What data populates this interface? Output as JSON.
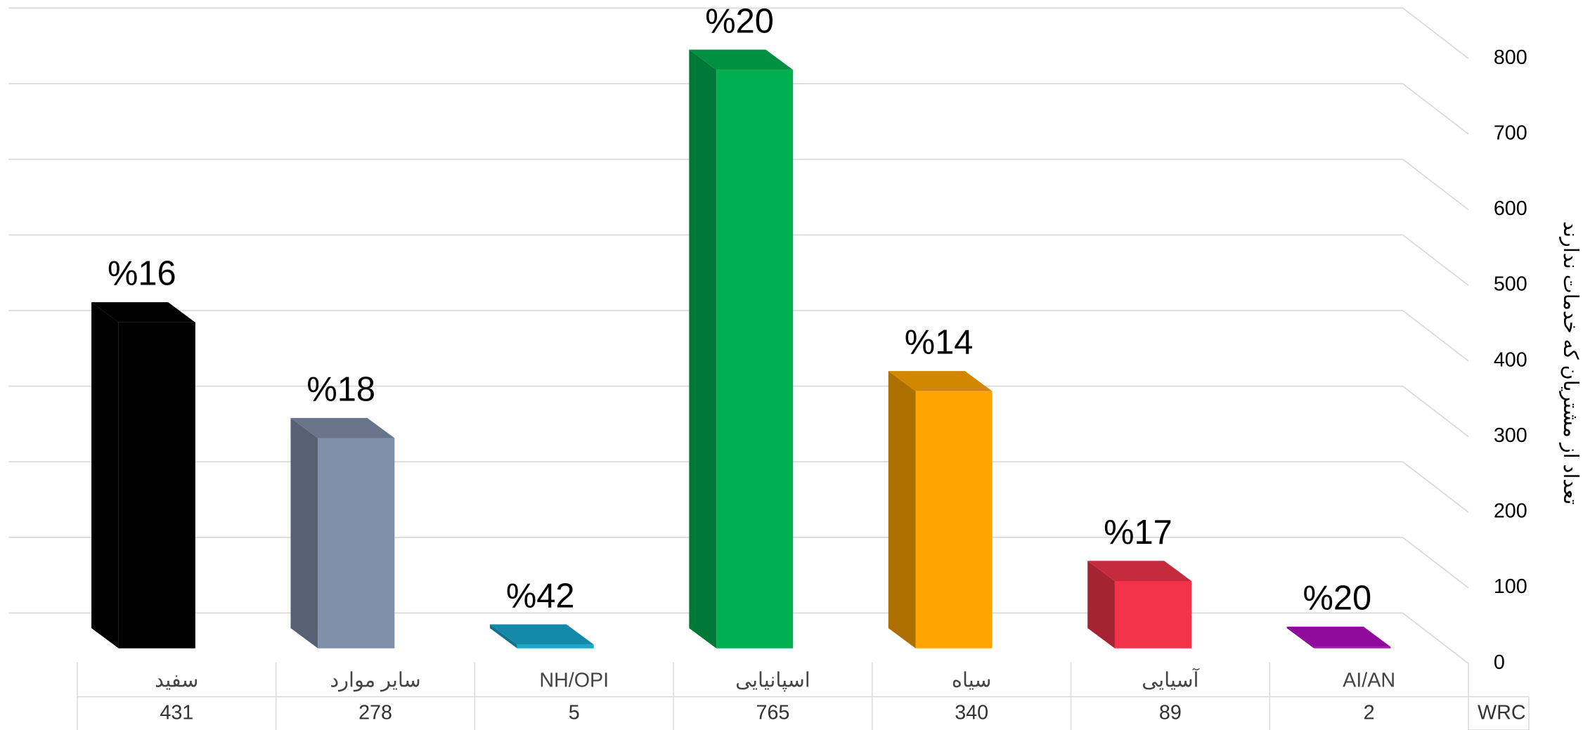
{
  "chart_data": {
    "type": "bar3d",
    "y_axis_label": "تعداد از مشتریان که خدمات ندارند",
    "categories": [
      "سفید",
      "سایر موارد",
      "NH/OPI",
      "اسپانیایی",
      "سیاه",
      "آسیایی",
      "AI/AN"
    ],
    "values": [
      431,
      278,
      5,
      765,
      340,
      89,
      2
    ],
    "data_labels": [
      "%16",
      "%18",
      "%42",
      "%20",
      "%14",
      "%17",
      "%20"
    ],
    "colors": [
      "#000000",
      "#7f8fa9",
      "#1aa7cf",
      "#00b050",
      "#ffa500",
      "#f2334a",
      "#b00cc0"
    ],
    "table_row_label": "WRC",
    "ylim": [
      0,
      800
    ],
    "yticks": [
      0,
      100,
      200,
      300,
      400,
      500,
      600,
      700,
      800
    ],
    "grid": true
  }
}
